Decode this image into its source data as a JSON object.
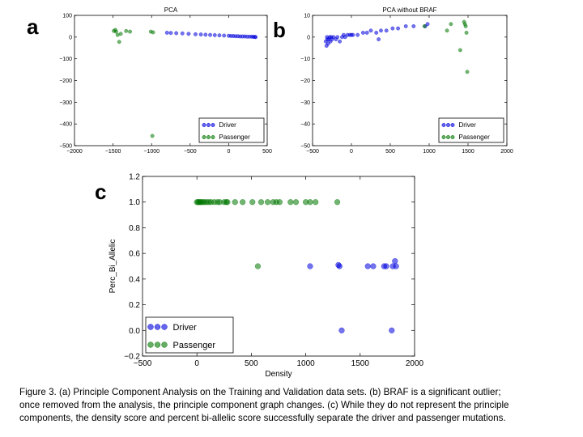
{
  "panel_labels": {
    "a": "a",
    "b": "b",
    "c": "c"
  },
  "caption": {
    "line1": "Figure 3. (a) Principle Component Analysis on the Training and Validation data sets. (b) BRAF is a significant outlier;",
    "line2": "once removed from the analysis, the principle component graph changes. (c) While they do not represent the principle",
    "line3": "components, the density score and percent bi-allelic score successfully separate the driver and passenger mutations."
  },
  "colors": {
    "driver": "#0000dd",
    "passenger": "#007700",
    "axis": "#000000"
  },
  "chart_data": [
    {
      "id": "a",
      "type": "scatter",
      "title": "PCA",
      "xlabel": "",
      "ylabel": "",
      "xlim": [
        -2000,
        500
      ],
      "ylim": [
        -500,
        100
      ],
      "xticks": [
        -2000,
        -1500,
        -1000,
        -500,
        0,
        500
      ],
      "yticks": [
        -500,
        -400,
        -300,
        -200,
        -100,
        0,
        100
      ],
      "legend": "lower-right",
      "series": [
        {
          "name": "Driver",
          "color_key": "driver",
          "points": [
            [
              -800,
              20
            ],
            [
              -750,
              19
            ],
            [
              -680,
              18
            ],
            [
              -600,
              17
            ],
            [
              -520,
              15
            ],
            [
              -430,
              13
            ],
            [
              -360,
              12
            ],
            [
              -300,
              11
            ],
            [
              -240,
              10
            ],
            [
              -180,
              9
            ],
            [
              -120,
              8
            ],
            [
              -60,
              7
            ],
            [
              0,
              6
            ],
            [
              30,
              5
            ],
            [
              60,
              5
            ],
            [
              90,
              4
            ],
            [
              120,
              4
            ],
            [
              150,
              3
            ],
            [
              180,
              3
            ],
            [
              210,
              3
            ],
            [
              240,
              2
            ],
            [
              270,
              2
            ],
            [
              300,
              2
            ],
            [
              320,
              1
            ],
            [
              340,
              1
            ],
            [
              350,
              0
            ]
          ]
        },
        {
          "name": "Passenger",
          "color_key": "passenger",
          "points": [
            [
              -1490,
              28
            ],
            [
              -1470,
              33
            ],
            [
              -1460,
              25
            ],
            [
              -1440,
              10
            ],
            [
              -1420,
              -22
            ],
            [
              -1400,
              15
            ],
            [
              -1330,
              28
            ],
            [
              -1280,
              25
            ],
            [
              -1010,
              25
            ],
            [
              -980,
              22
            ],
            [
              -990,
              -455
            ]
          ]
        }
      ]
    },
    {
      "id": "b",
      "type": "scatter",
      "title": "PCA without BRAF",
      "xlabel": "",
      "ylabel": "",
      "xlim": [
        -500,
        2000
      ],
      "ylim": [
        -50,
        10
      ],
      "xticks": [
        -500,
        0,
        500,
        1000,
        1500,
        2000
      ],
      "yticks": [
        -50,
        -40,
        -30,
        -20,
        -10,
        0,
        10
      ],
      "legend": "lower-right",
      "series": [
        {
          "name": "Driver",
          "color_key": "driver",
          "points": [
            [
              -330,
              -2
            ],
            [
              -320,
              -4
            ],
            [
              -315,
              0
            ],
            [
              -310,
              -1
            ],
            [
              -300,
              -3
            ],
            [
              -290,
              -1
            ],
            [
              -280,
              0
            ],
            [
              -270,
              -2
            ],
            [
              -260,
              0
            ],
            [
              -250,
              -1
            ],
            [
              -230,
              0
            ],
            [
              -200,
              -1
            ],
            [
              -180,
              0
            ],
            [
              -150,
              -2
            ],
            [
              -120,
              0
            ],
            [
              -100,
              1
            ],
            [
              -80,
              0
            ],
            [
              -50,
              1
            ],
            [
              -20,
              1
            ],
            [
              0,
              1
            ],
            [
              20,
              1
            ],
            [
              80,
              1
            ],
            [
              150,
              2
            ],
            [
              200,
              2
            ],
            [
              250,
              3
            ],
            [
              320,
              2
            ],
            [
              350,
              -1
            ],
            [
              380,
              3
            ],
            [
              450,
              3
            ],
            [
              530,
              4
            ],
            [
              600,
              4
            ],
            [
              700,
              5
            ],
            [
              800,
              5
            ],
            [
              950,
              5
            ],
            [
              980,
              6
            ]
          ]
        },
        {
          "name": "Passenger",
          "color_key": "passenger",
          "points": [
            [
              940,
              5
            ],
            [
              1230,
              3
            ],
            [
              1280,
              6
            ],
            [
              1400,
              -6
            ],
            [
              1450,
              7
            ],
            [
              1460,
              6
            ],
            [
              1470,
              5
            ],
            [
              1480,
              2
            ],
            [
              1490,
              -16
            ]
          ]
        }
      ]
    },
    {
      "id": "c",
      "type": "scatter",
      "title": "",
      "xlabel": "Density",
      "ylabel": "Perc_Bi_Allelic",
      "xlim": [
        -500,
        2000
      ],
      "ylim": [
        -0.2,
        1.2
      ],
      "xticks": [
        -500,
        0,
        500,
        1000,
        1500,
        2000
      ],
      "yticks": [
        -0.2,
        0.0,
        0.2,
        0.4,
        0.6,
        0.8,
        1.0,
        1.2
      ],
      "legend": "lower-left",
      "series": [
        {
          "name": "Driver",
          "color_key": "driver",
          "points": [
            [
              1040,
              0.5
            ],
            [
              1300,
              0.51
            ],
            [
              1310,
              0.5
            ],
            [
              1570,
              0.5
            ],
            [
              1620,
              0.5
            ],
            [
              1720,
              0.5
            ],
            [
              1740,
              0.5
            ],
            [
              1800,
              0.5
            ],
            [
              1820,
              0.54
            ],
            [
              1830,
              0.5
            ],
            [
              1330,
              0.0
            ],
            [
              1790,
              0.0
            ]
          ]
        },
        {
          "name": "Passenger",
          "color_key": "passenger",
          "points": [
            [
              0,
              1.0
            ],
            [
              10,
              1.0
            ],
            [
              20,
              1.0
            ],
            [
              30,
              1.0
            ],
            [
              40,
              1.0
            ],
            [
              55,
              1.0
            ],
            [
              70,
              1.0
            ],
            [
              90,
              1.0
            ],
            [
              110,
              1.0
            ],
            [
              130,
              1.0
            ],
            [
              160,
              1.0
            ],
            [
              190,
              1.0
            ],
            [
              210,
              1.0
            ],
            [
              250,
              1.0
            ],
            [
              270,
              1.0
            ],
            [
              280,
              1.0
            ],
            [
              350,
              1.0
            ],
            [
              420,
              1.0
            ],
            [
              510,
              1.0
            ],
            [
              590,
              1.0
            ],
            [
              650,
              1.0
            ],
            [
              700,
              1.0
            ],
            [
              730,
              1.0
            ],
            [
              760,
              1.0
            ],
            [
              860,
              1.0
            ],
            [
              910,
              1.0
            ],
            [
              1000,
              1.0
            ],
            [
              1040,
              1.0
            ],
            [
              1090,
              1.0
            ],
            [
              1290,
              1.0
            ],
            [
              560,
              0.5
            ],
            [
              0,
              0.0
            ],
            [
              5,
              0.01
            ]
          ]
        }
      ]
    }
  ]
}
